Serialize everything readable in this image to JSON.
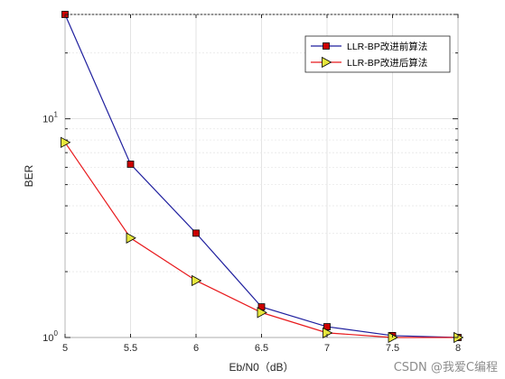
{
  "chart_data": {
    "type": "line",
    "x": [
      5,
      5.5,
      6,
      6.5,
      7,
      7.5,
      8
    ],
    "xlabel": "Eb/N0（dB）",
    "ylabel": "BER",
    "xlim": [
      5,
      8
    ],
    "ylim": [
      1,
      30
    ],
    "yscale": "log",
    "grid": true,
    "legend_position": "top-right",
    "x_ticks": [
      "5",
      "5.5",
      "6",
      "6.5",
      "7",
      "7.5",
      "8"
    ],
    "y_ticks": [
      {
        "value": 1,
        "base": "10",
        "exp": "0"
      },
      {
        "value": 10,
        "base": "10",
        "exp": "1"
      }
    ],
    "series": [
      {
        "name": "LLR-BP改进前算法",
        "values": [
          30,
          6.2,
          3.0,
          1.38,
          1.12,
          1.02,
          1.0
        ],
        "line_color": "#1f1f9e",
        "marker": "square",
        "marker_fill": "#cc0000"
      },
      {
        "name": "LLR-BP改进后算法",
        "values": [
          7.8,
          2.85,
          1.82,
          1.3,
          1.05,
          1.0,
          1.0
        ],
        "line_color": "#e8191c",
        "marker": "triangle-right",
        "marker_fill": "#e6e63c"
      }
    ]
  },
  "watermark": "CSDN @我爱C编程"
}
